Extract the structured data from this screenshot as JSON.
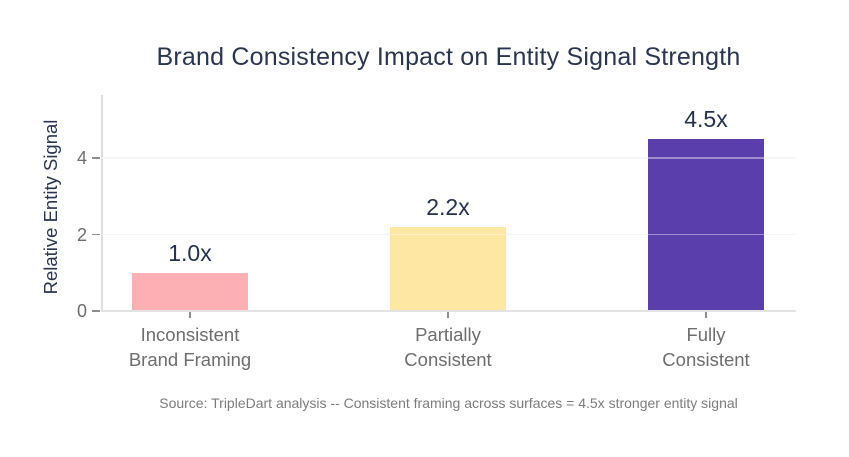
{
  "chart_data": {
    "type": "bar",
    "title": "Brand Consistency Impact on Entity Signal Strength",
    "ylabel": "Relative Entity Signal",
    "xlabel": "",
    "categories": [
      "Inconsistent Brand Framing",
      "Partially Consistent",
      "Fully Consistent"
    ],
    "category_label_lines": [
      [
        "Inconsistent",
        "Brand Framing"
      ],
      [
        "Partially",
        "Consistent"
      ],
      [
        "Fully",
        "Consistent"
      ]
    ],
    "values": [
      1.0,
      2.2,
      4.5
    ],
    "value_labels": [
      "1.0x",
      "2.2x",
      "4.5x"
    ],
    "bar_colors": [
      "#FDB0B4",
      "#FDE7A3",
      "#5A3EAC"
    ],
    "y_ticks": [
      0,
      2,
      4
    ],
    "y_tick_labels": [
      "0",
      "2",
      "4"
    ],
    "ylim": [
      0,
      5.65
    ],
    "grid": "horizontal gridlines at y=2 and y=4, drawn faintly over bars",
    "legend": "none",
    "caption": "Source: TripleDart analysis -- Consistent framing across surfaces = 4.5x stronger entity signal"
  },
  "colors": {
    "background": "#FFFFFF",
    "title_text": "#2A3550",
    "value_label_text": "#26314E",
    "axis_text": "#6E6E6E",
    "caption_text": "#7C7C7C",
    "axis_line": "#E2E2E2",
    "gridline": "#F0F0F0"
  }
}
